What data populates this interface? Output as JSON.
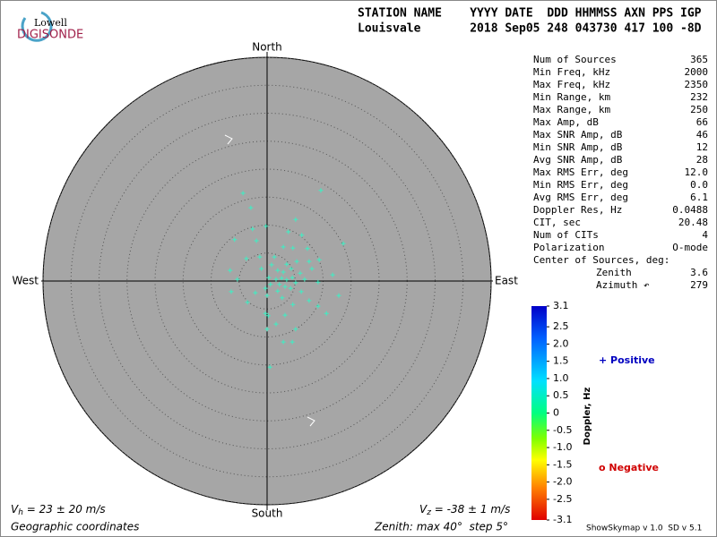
{
  "chart_data": {
    "type": "skymap",
    "logo": {
      "top": "Lowell",
      "bottom": "DIGISONDE"
    },
    "header": {
      "labels": "STATION NAME    YYYY DATE  DDD HHMMSS AXN PPS IGP",
      "values": "Louisvale       2018 Sep05 248 043730 417 100 -8D"
    },
    "directions": {
      "north": "North",
      "south": "South",
      "east": "East",
      "west": "West"
    },
    "rlim": [
      0,
      40
    ],
    "rings": [
      5,
      10,
      15,
      20,
      25,
      30,
      35,
      40
    ],
    "series": [
      {
        "color": "#3cf0c4",
        "x": [
          -4.3,
          9.6,
          -2.9,
          -0.2,
          -2.6,
          5.1,
          3.8,
          6.2,
          -5.8,
          -1.9,
          13.6,
          2.9,
          4.6,
          7.2,
          -1.3,
          1.3,
          -3.7,
          0.8,
          3.5,
          5.3,
          7.5,
          9.3,
          -6.6,
          -1.0,
          1.9,
          2.9,
          4.3,
          5.9,
          8.0,
          11.7,
          -5.3,
          0.3,
          1.6,
          2.6,
          3.5,
          4.5,
          5.1,
          6.7,
          9.1,
          0.6,
          2.2,
          3.2,
          4.2,
          -0.3,
          -6.4,
          -2.1,
          1.9,
          6.1,
          12.8,
          0.0,
          2.7,
          7.5,
          -3.5,
          4.6,
          9.1,
          -0.3,
          0.2,
          3.2,
          10.6,
          0.0,
          1.6,
          5.1,
          2.9,
          4.5,
          0.5
        ],
        "y": [
          15.7,
          16.2,
          13.1,
          9.8,
          9.3,
          11.0,
          8.8,
          8.2,
          7.4,
          7.2,
          6.7,
          6.1,
          5.9,
          5.8,
          4.3,
          4.3,
          4.0,
          2.9,
          3.0,
          3.5,
          3.5,
          3.8,
          1.9,
          2.2,
          1.9,
          1.6,
          2.2,
          1.4,
          2.2,
          1.1,
          0.3,
          0.6,
          0.3,
          0.5,
          0.2,
          0.6,
          -0.3,
          0.3,
          -0.2,
          -0.6,
          -0.6,
          -1.0,
          -1.3,
          -1.3,
          -1.9,
          -2.1,
          -1.8,
          -1.9,
          -2.6,
          -2.6,
          -3.0,
          -3.5,
          -3.8,
          -4.2,
          -4.5,
          -5.8,
          -6.2,
          -6.1,
          -5.8,
          -8.6,
          -7.7,
          -8.6,
          -10.9,
          -10.9,
          -15.4
        ]
      }
    ],
    "stats": [
      {
        "label": "Num of Sources",
        "value": "365"
      },
      {
        "label": "Min Freq, kHz",
        "value": "2000"
      },
      {
        "label": "Max Freq, kHz",
        "value": "2350"
      },
      {
        "label": "Min Range, km",
        "value": "232"
      },
      {
        "label": "Max Range, km",
        "value": "250"
      },
      {
        "label": "Max Amp, dB",
        "value": "66"
      },
      {
        "label": "Max SNR Amp, dB",
        "value": "46"
      },
      {
        "label": "Min SNR Amp, dB",
        "value": "12"
      },
      {
        "label": "Avg SNR Amp, dB",
        "value": "28"
      },
      {
        "label": "Max RMS Err, deg",
        "value": "12.0"
      },
      {
        "label": "Min RMS Err, deg",
        "value": "0.0"
      },
      {
        "label": "Avg RMS Err, deg",
        "value": "6.1"
      },
      {
        "label": "Doppler Res, Hz",
        "value": "0.0488"
      },
      {
        "label": "CIT, sec",
        "value": "20.48"
      },
      {
        "label": "Num of CITs",
        "value": "4"
      },
      {
        "label": "Polarization",
        "value": "O-mode"
      },
      {
        "label": "Center of Sources, deg:",
        "value": null
      },
      {
        "label": "Zenith",
        "value": "3.6"
      },
      {
        "label": "Azimuth ↶",
        "value": "279"
      }
    ],
    "colorbar": {
      "label": "Doppler, Hz",
      "lim": [
        -3.1,
        3.1
      ],
      "ticks": [
        3.1,
        2.5,
        {
          "value": 2,
          "label": "2.0"
        },
        1.5,
        {
          "value": 1,
          "label": "1.0"
        },
        0.5,
        0,
        -0.5,
        {
          "value": -1,
          "label": "-1.0"
        },
        -1.5,
        {
          "value": -2,
          "label": "-2.0"
        },
        -2.5,
        -3.1
      ]
    },
    "positive": "+ Positive",
    "negative": "o Negative",
    "vh": {
      "symbol": "V",
      "sub": "h",
      "text": " = 23 ± 20 m/s"
    },
    "vz": {
      "symbol": "V",
      "sub": "z",
      "text": " = -38 ± 1 m/s"
    },
    "coords": "Geographic coordinates",
    "zenith_note": "Zenith: max 40°  step 5°",
    "version": "ShowSkymap v 1.0  SD v 5.1"
  }
}
